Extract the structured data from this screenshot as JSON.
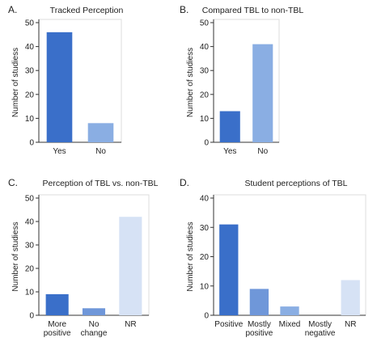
{
  "chart_data": [
    {
      "type": "bar",
      "panel_label": "A.",
      "title": "Tracked Perception",
      "ylabel": "Number of studiess",
      "categories": [
        "Yes",
        "No"
      ],
      "values": [
        46,
        8
      ],
      "colors": [
        "#3a6fc9",
        "#8aaee3"
      ],
      "ylim": [
        0,
        50
      ],
      "yticks": [
        0,
        10,
        20,
        30,
        40,
        50
      ]
    },
    {
      "type": "bar",
      "panel_label": "B.",
      "title": "Compared TBL to non-TBL",
      "ylabel": "Number of studiess",
      "categories": [
        "Yes",
        "No"
      ],
      "values": [
        13,
        41
      ],
      "colors": [
        "#3a6fc9",
        "#8aaee3"
      ],
      "ylim": [
        0,
        50
      ],
      "yticks": [
        0,
        10,
        20,
        30,
        40,
        50
      ]
    },
    {
      "type": "bar",
      "panel_label": "C.",
      "title": "Perception of TBL vs. non-TBL",
      "ylabel": "Number of studiess",
      "categories": [
        "More positive",
        "No change",
        "NR"
      ],
      "values": [
        9,
        3,
        42
      ],
      "colors": [
        "#3a6fc9",
        "#6f97d9",
        "#d6e2f5"
      ],
      "ylim": [
        0,
        50
      ],
      "yticks": [
        0,
        10,
        20,
        30,
        40,
        50
      ]
    },
    {
      "type": "bar",
      "panel_label": "D.",
      "title": "Student perceptions of TBL",
      "ylabel": "Number of studiess",
      "categories": [
        "Positive",
        "Mostly positive",
        "Mixed",
        "Mostly negative",
        "NR"
      ],
      "values": [
        31,
        9,
        3,
        0,
        12
      ],
      "colors": [
        "#3a6fc9",
        "#6f97d9",
        "#8aaee3",
        "#b7cdee",
        "#d6e2f5"
      ],
      "ylim": [
        0,
        40
      ],
      "yticks": [
        0,
        10,
        20,
        30,
        40
      ]
    }
  ]
}
